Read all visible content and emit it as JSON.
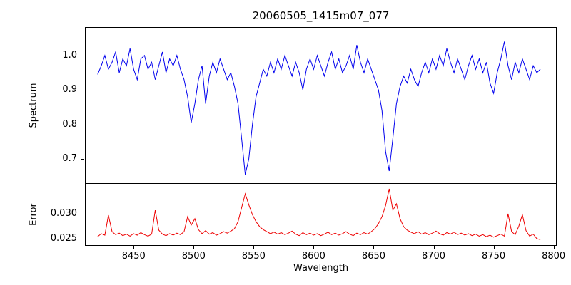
{
  "chart_data": [
    {
      "type": "line",
      "panel": "spectrum",
      "title": "20060505_1415m07_077",
      "ylabel": "Spectrum",
      "color": "#0000ee",
      "xlim": [
        8410,
        8802
      ],
      "ylim": [
        0.63,
        1.08
      ],
      "yticks": [
        0.7,
        0.8,
        0.9,
        1.0
      ],
      "ytick_labels": [
        "0.7",
        "0.8",
        "0.9",
        "1.0"
      ],
      "x_start": 8420,
      "x_step": 3,
      "y": [
        0.945,
        0.97,
        1.0,
        0.96,
        0.98,
        1.01,
        0.95,
        0.99,
        0.97,
        1.02,
        0.96,
        0.93,
        0.99,
        1.0,
        0.96,
        0.98,
        0.93,
        0.97,
        1.01,
        0.95,
        0.99,
        0.97,
        1.0,
        0.96,
        0.93,
        0.88,
        0.805,
        0.86,
        0.93,
        0.97,
        0.86,
        0.94,
        0.98,
        0.95,
        0.99,
        0.96,
        0.93,
        0.95,
        0.91,
        0.86,
        0.76,
        0.655,
        0.7,
        0.8,
        0.88,
        0.92,
        0.96,
        0.94,
        0.98,
        0.95,
        0.99,
        0.96,
        1.0,
        0.97,
        0.94,
        0.98,
        0.95,
        0.9,
        0.96,
        0.99,
        0.96,
        1.0,
        0.97,
        0.94,
        0.98,
        1.01,
        0.96,
        0.99,
        0.95,
        0.97,
        1.0,
        0.96,
        1.03,
        0.98,
        0.95,
        0.99,
        0.96,
        0.93,
        0.9,
        0.84,
        0.72,
        0.665,
        0.76,
        0.86,
        0.91,
        0.94,
        0.92,
        0.96,
        0.93,
        0.91,
        0.95,
        0.98,
        0.95,
        0.99,
        0.96,
        1.0,
        0.97,
        1.02,
        0.98,
        0.95,
        0.99,
        0.96,
        0.93,
        0.97,
        1.0,
        0.96,
        0.99,
        0.95,
        0.98,
        0.92,
        0.89,
        0.95,
        0.99,
        1.04,
        0.97,
        0.93,
        0.98,
        0.95,
        0.99,
        0.96,
        0.93,
        0.97,
        0.95,
        0.96
      ]
    },
    {
      "type": "line",
      "panel": "error",
      "ylabel": "Error",
      "xlabel": "Wavelength",
      "color": "#ee0000",
      "xlim": [
        8410,
        8802
      ],
      "ylim": [
        0.0235,
        0.0358
      ],
      "yticks": [
        0.025,
        0.03
      ],
      "ytick_labels": [
        "0.025",
        "0.030"
      ],
      "xticks": [
        8450,
        8500,
        8550,
        8600,
        8650,
        8700,
        8750,
        8800
      ],
      "xtick_labels": [
        "8450",
        "8500",
        "8550",
        "8600",
        "8650",
        "8700",
        "8750",
        "8800"
      ],
      "x_start": 8420,
      "x_step": 3,
      "y": [
        0.0252,
        0.0258,
        0.0255,
        0.0295,
        0.0262,
        0.0256,
        0.0259,
        0.0254,
        0.0257,
        0.0253,
        0.0258,
        0.0255,
        0.026,
        0.0256,
        0.0253,
        0.0257,
        0.0305,
        0.0265,
        0.0257,
        0.0254,
        0.0258,
        0.0255,
        0.0259,
        0.0256,
        0.0262,
        0.0292,
        0.0275,
        0.0288,
        0.0266,
        0.0258,
        0.0264,
        0.0257,
        0.026,
        0.0255,
        0.0258,
        0.0262,
        0.0259,
        0.0263,
        0.0268,
        0.0282,
        0.031,
        0.0338,
        0.0316,
        0.0296,
        0.0282,
        0.0272,
        0.0266,
        0.0262,
        0.0258,
        0.0261,
        0.0257,
        0.026,
        0.0256,
        0.0259,
        0.0263,
        0.0257,
        0.0254,
        0.026,
        0.0256,
        0.0259,
        0.0255,
        0.0258,
        0.0254,
        0.0257,
        0.0261,
        0.0256,
        0.0259,
        0.0255,
        0.0258,
        0.0262,
        0.0257,
        0.0254,
        0.0259,
        0.0256,
        0.026,
        0.0257,
        0.0262,
        0.0268,
        0.0278,
        0.0292,
        0.0315,
        0.0348,
        0.0305,
        0.0318,
        0.0288,
        0.0272,
        0.0265,
        0.0261,
        0.0258,
        0.0262,
        0.0257,
        0.026,
        0.0256,
        0.0259,
        0.0263,
        0.0258,
        0.0255,
        0.026,
        0.0257,
        0.0261,
        0.0256,
        0.0259,
        0.0255,
        0.0258,
        0.0254,
        0.0257,
        0.0253,
        0.0256,
        0.0252,
        0.0255,
        0.0251,
        0.0254,
        0.0257,
        0.0253,
        0.0298,
        0.0262,
        0.0256,
        0.0273,
        0.0296,
        0.0264,
        0.0253,
        0.0257,
        0.0248,
        0.0246
      ]
    }
  ]
}
